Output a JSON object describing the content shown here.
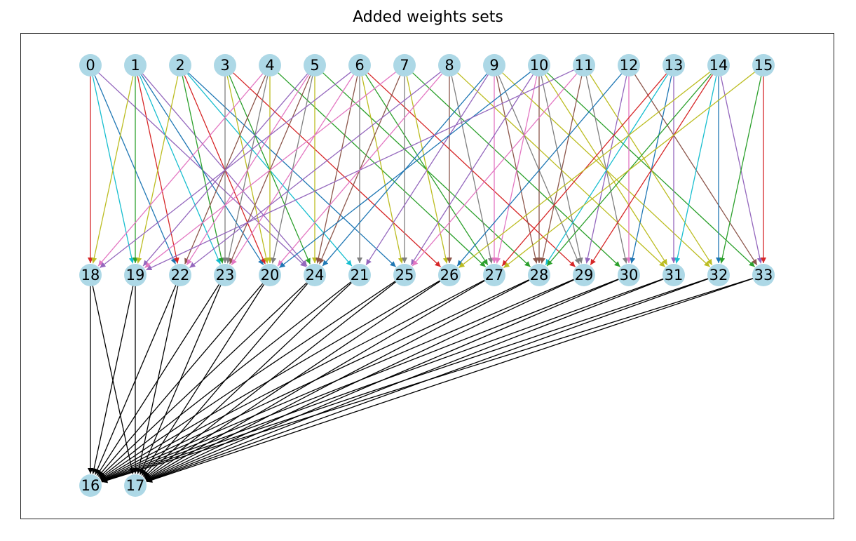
{
  "title": "Added weights sets",
  "palette": [
    "#d62728",
    "#17becf",
    "#1f77b4",
    "#9467bd",
    "#e377c2",
    "#8c564b",
    "#7f7f7f",
    "#bcbd22",
    "#2ca02c"
  ],
  "sink_edge_color": "#000000",
  "node_color": "#add8e6",
  "layers": {
    "input": [
      "0",
      "1",
      "2",
      "3",
      "4",
      "5",
      "6",
      "7",
      "8",
      "9",
      "10",
      "11",
      "12",
      "13",
      "14",
      "15"
    ],
    "hidden": [
      "18",
      "19",
      "22",
      "23",
      "20",
      "24",
      "21",
      "25",
      "26",
      "27",
      "28",
      "29",
      "30",
      "31",
      "32",
      "33"
    ],
    "output": [
      "16",
      "17"
    ]
  },
  "edges_input_to_hidden": [
    [
      "0",
      "18"
    ],
    [
      "0",
      "19"
    ],
    [
      "0",
      "22"
    ],
    [
      "0",
      "24"
    ],
    [
      "1",
      "18"
    ],
    [
      "1",
      "19"
    ],
    [
      "1",
      "22"
    ],
    [
      "1",
      "23"
    ],
    [
      "1",
      "20"
    ],
    [
      "1",
      "24"
    ],
    [
      "2",
      "19"
    ],
    [
      "2",
      "23"
    ],
    [
      "2",
      "20"
    ],
    [
      "2",
      "21"
    ],
    [
      "2",
      "25"
    ],
    [
      "3",
      "23"
    ],
    [
      "3",
      "20"
    ],
    [
      "3",
      "24"
    ],
    [
      "3",
      "26"
    ],
    [
      "4",
      "18"
    ],
    [
      "4",
      "22"
    ],
    [
      "4",
      "23"
    ],
    [
      "4",
      "20"
    ],
    [
      "4",
      "27"
    ],
    [
      "5",
      "19"
    ],
    [
      "5",
      "22"
    ],
    [
      "5",
      "23"
    ],
    [
      "5",
      "20"
    ],
    [
      "5",
      "24"
    ],
    [
      "5",
      "28"
    ],
    [
      "6",
      "18"
    ],
    [
      "6",
      "23"
    ],
    [
      "6",
      "24"
    ],
    [
      "6",
      "21"
    ],
    [
      "6",
      "25"
    ],
    [
      "6",
      "27"
    ],
    [
      "6",
      "29"
    ],
    [
      "7",
      "19"
    ],
    [
      "7",
      "24"
    ],
    [
      "7",
      "25"
    ],
    [
      "7",
      "26"
    ],
    [
      "7",
      "30"
    ],
    [
      "8",
      "22"
    ],
    [
      "8",
      "20"
    ],
    [
      "8",
      "26"
    ],
    [
      "8",
      "27"
    ],
    [
      "8",
      "31"
    ],
    [
      "9",
      "24"
    ],
    [
      "9",
      "21"
    ],
    [
      "9",
      "27"
    ],
    [
      "9",
      "28"
    ],
    [
      "9",
      "29"
    ],
    [
      "9",
      "32"
    ],
    [
      "10",
      "20"
    ],
    [
      "10",
      "25"
    ],
    [
      "10",
      "27"
    ],
    [
      "10",
      "28"
    ],
    [
      "10",
      "29"
    ],
    [
      "10",
      "31"
    ],
    [
      "10",
      "33"
    ],
    [
      "11",
      "19"
    ],
    [
      "11",
      "25"
    ],
    [
      "11",
      "28"
    ],
    [
      "11",
      "30"
    ],
    [
      "11",
      "32"
    ],
    [
      "12",
      "26"
    ],
    [
      "12",
      "29"
    ],
    [
      "12",
      "30"
    ],
    [
      "12",
      "33"
    ],
    [
      "13",
      "27"
    ],
    [
      "13",
      "28"
    ],
    [
      "13",
      "30"
    ],
    [
      "13",
      "31"
    ],
    [
      "14",
      "26"
    ],
    [
      "14",
      "28"
    ],
    [
      "14",
      "29"
    ],
    [
      "14",
      "31"
    ],
    [
      "14",
      "32"
    ],
    [
      "14",
      "33"
    ],
    [
      "15",
      "27"
    ],
    [
      "15",
      "32"
    ],
    [
      "15",
      "33"
    ]
  ]
}
